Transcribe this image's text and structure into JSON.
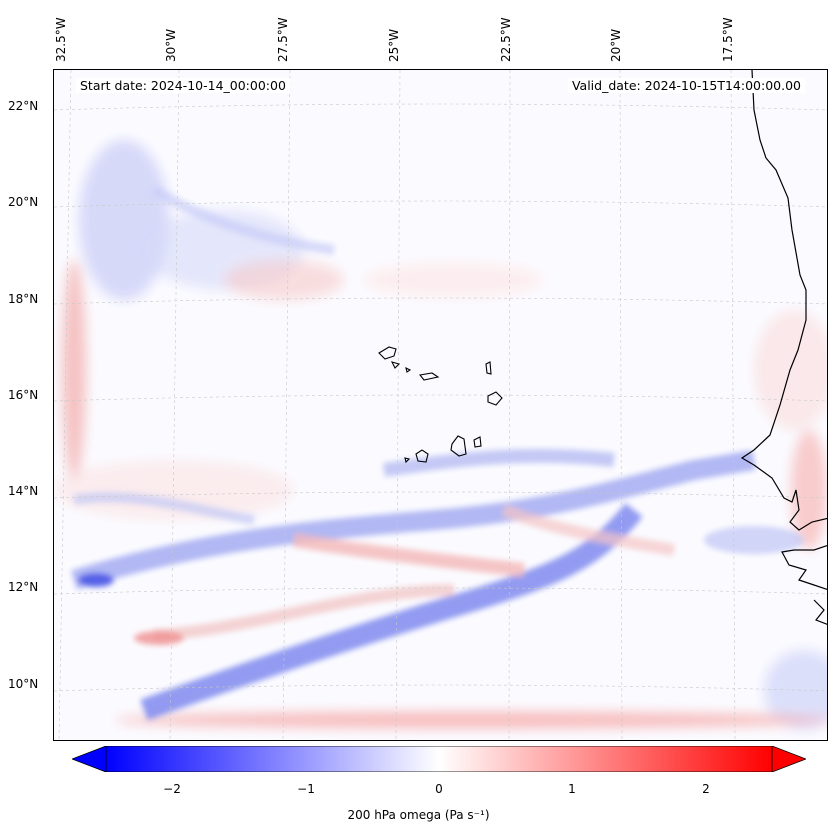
{
  "map": {
    "start_date_label": "Start date: 2024-10-14_00:00:00",
    "valid_date_label": "Valid_date: 2024-10-15T14:00:00.00",
    "lon_labels": [
      "32.5°W",
      "30°W",
      "27.5°W",
      "25°W",
      "22.5°W",
      "20°W",
      "17.5°W"
    ],
    "lat_labels": [
      "22°N",
      "20°N",
      "18°N",
      "16°N",
      "14°N",
      "12°N",
      "10°N"
    ],
    "lon_range": [
      -33.0,
      -15.8
    ],
    "lat_range": [
      8.9,
      22.8
    ],
    "variable": "200 hPa omega",
    "coastline_color": "#000000"
  },
  "colorbar": {
    "label": "200 hPa omega (Pa s⁻¹)",
    "ticks": [
      "−2",
      "−1",
      "0",
      "1",
      "2"
    ],
    "tick_values": [
      -2,
      -1,
      0,
      1,
      2
    ],
    "range": [
      -2.5,
      2.5
    ],
    "extend": "both",
    "colors": {
      "min": "#0000ff",
      "mid": "#ffffff",
      "max": "#ff0000"
    }
  }
}
